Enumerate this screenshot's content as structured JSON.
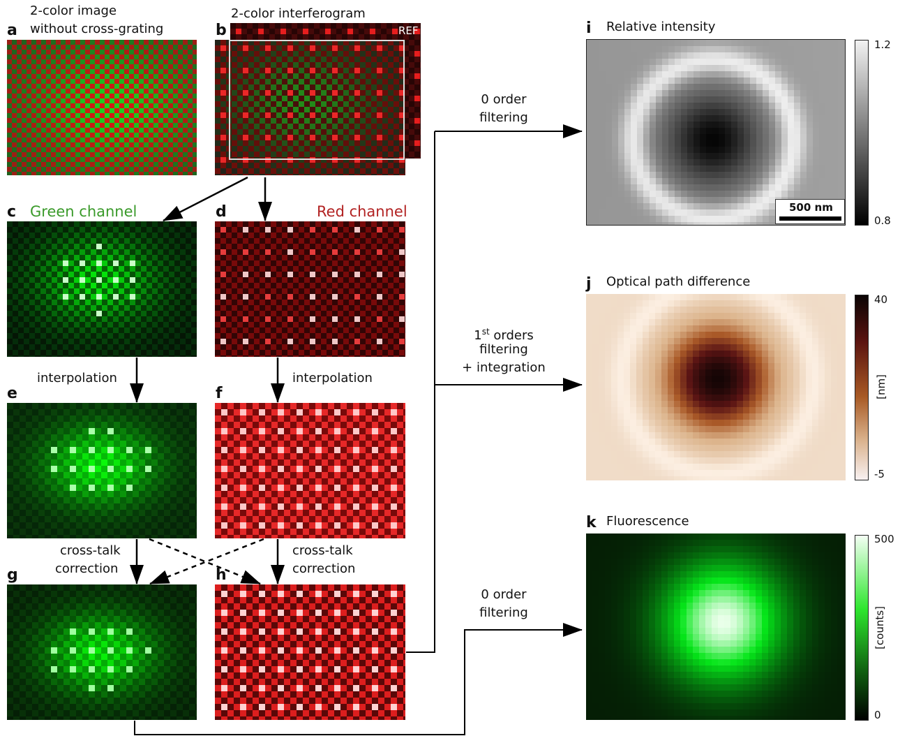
{
  "panels": {
    "a": {
      "letter": "a",
      "title_line1": "2-color image",
      "title_line2": "without cross-grating"
    },
    "b": {
      "letter": "b",
      "title": "2-color interferogram",
      "ref_label": "REF"
    },
    "c": {
      "letter": "c",
      "title": "Green channel"
    },
    "d": {
      "letter": "d",
      "title": "Red channel"
    },
    "e": {
      "letter": "e",
      "caption": "interpolation"
    },
    "f": {
      "letter": "f",
      "caption": "interpolation"
    },
    "g": {
      "letter": "g",
      "caption_line1": "cross-talk",
      "caption_line2": "correction"
    },
    "h": {
      "letter": "h",
      "caption_line1": "cross-talk",
      "caption_line2": "correction"
    },
    "i": {
      "letter": "i",
      "title": "Relative intensity",
      "scale_bar": "500 nm",
      "cbar_max": "1.2",
      "cbar_min": "0.8"
    },
    "j": {
      "letter": "j",
      "title": "Optical path difference",
      "cbar_max": "40",
      "cbar_min": "-5",
      "cbar_unit": "[nm]"
    },
    "k": {
      "letter": "k",
      "title": "Fluorescence",
      "cbar_max": "500",
      "cbar_min": "0",
      "cbar_unit": "[counts]"
    }
  },
  "flow": {
    "zero_order_top_line1": "0 order",
    "zero_order_top_line2": "filtering",
    "first_order_line1_base": "1",
    "first_order_line1_sup": "st",
    "first_order_line1_rest": " orders",
    "first_order_line2": "filtering",
    "first_order_line3": "+ integration",
    "zero_order_bottom_line1": "0 order",
    "zero_order_bottom_line2": "filtering"
  },
  "colors": {
    "green_title": "#3a9a2a",
    "red_title": "#b22222",
    "arrow": "#000000"
  }
}
